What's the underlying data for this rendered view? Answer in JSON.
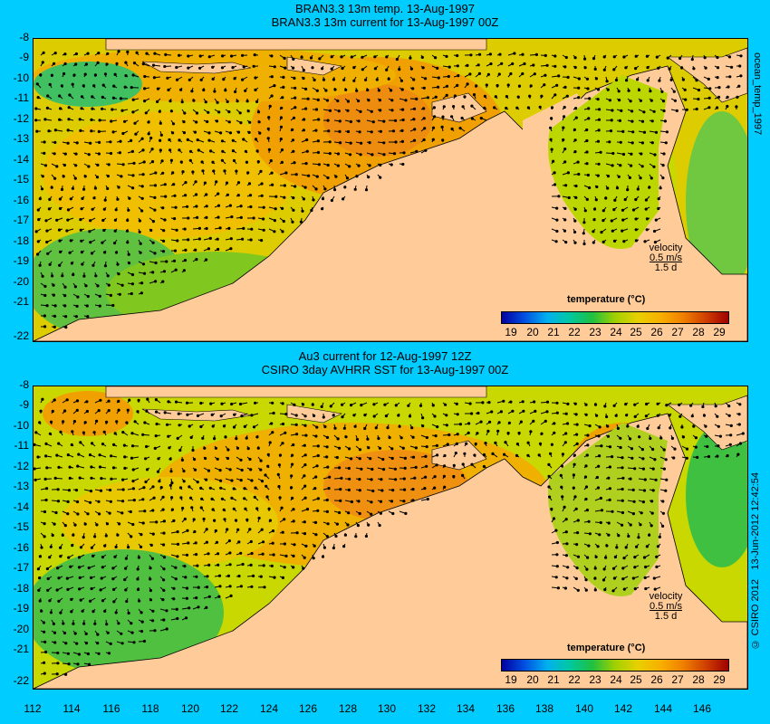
{
  "panel_top": {
    "title1": "BRAN3.3 13m temp. 13-Aug-1997",
    "title2": "BRAN3.3 13m current for 13-Aug-1997 00Z"
  },
  "panel_bottom": {
    "title1": "Au3 current for 12-Aug-1997 12Z",
    "title2": "CSIRO 3day AVHRR SST for 13-Aug-1997 00Z"
  },
  "side_label": "ocean_temp_1997",
  "credit": "© CSIRO 2012",
  "timestamp": "13-Jun-2012 12:42:54",
  "legend": {
    "velocity_label": "velocity",
    "velocity_scale": "0.5 m/s",
    "duration": "1.5 d",
    "colorbar_title": "temperature (°C)",
    "colorbar_ticks": [
      "19",
      "20",
      "21",
      "22",
      "23",
      "24",
      "25",
      "26",
      "27",
      "28",
      "29"
    ]
  },
  "axes": {
    "lat_ticks": [
      "-8",
      "-9",
      "-10",
      "-11",
      "-12",
      "-13",
      "-14",
      "-15",
      "-16",
      "-17",
      "-18",
      "-19",
      "-20",
      "-21",
      "-22"
    ],
    "lon_ticks": [
      "112",
      "114",
      "116",
      "118",
      "120",
      "122",
      "124",
      "126",
      "128",
      "130",
      "132",
      "134",
      "136",
      "138",
      "140",
      "142",
      "144",
      "146"
    ]
  },
  "colors": {
    "background": "#00ccff",
    "land": "#ffcc99"
  }
}
